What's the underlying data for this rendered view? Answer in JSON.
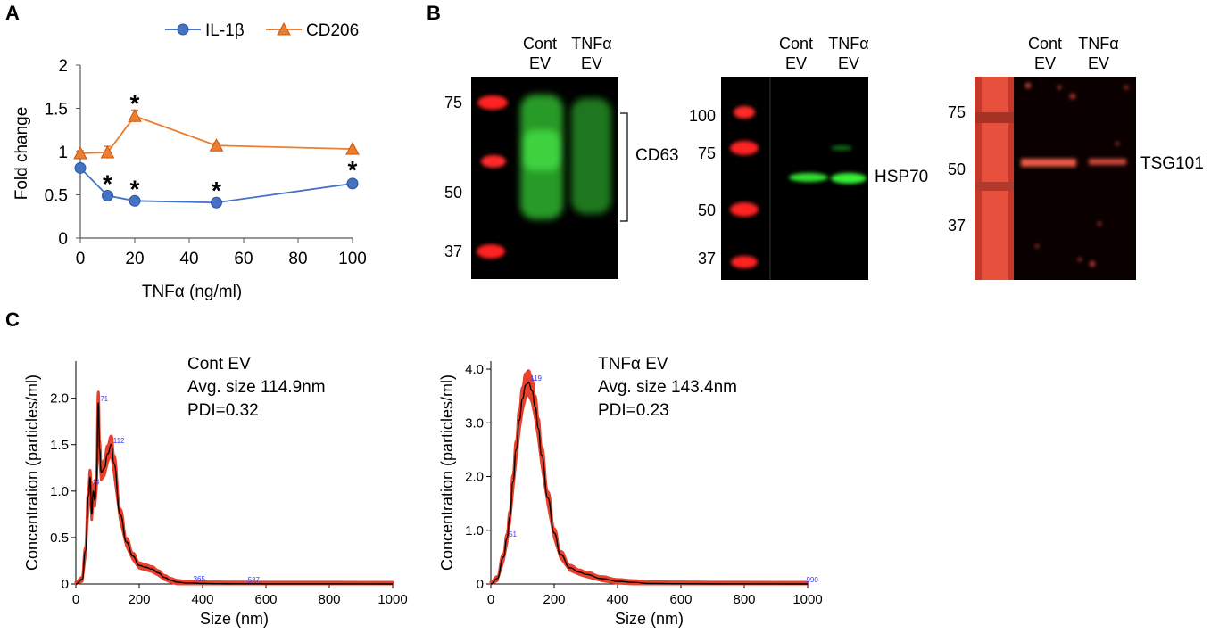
{
  "panels": {
    "a": "A",
    "b": "B",
    "c": "C"
  },
  "panel_a": {
    "chart_data": {
      "type": "line",
      "xlabel": "TNFα (ng/ml)",
      "ylabel": "Fold change",
      "x": [
        0,
        10,
        20,
        50,
        100
      ],
      "xticks": [
        "0",
        "20",
        "40",
        "60",
        "80",
        "100"
      ],
      "yticks": [
        "0",
        "0.5",
        "1",
        "1.5",
        "2"
      ],
      "xlim": [
        0,
        100
      ],
      "ylim": [
        0,
        2
      ],
      "series": [
        {
          "name": "IL-1β",
          "values": [
            0.81,
            0.49,
            0.43,
            0.41,
            0.63
          ],
          "errors": [
            0.02,
            0.02,
            0.02,
            0.02,
            0.02
          ],
          "color": "#4472c4",
          "marker": "circle",
          "significance": [
            "",
            "*",
            "*",
            "*",
            "*"
          ]
        },
        {
          "name": "CD206",
          "values": [
            0.98,
            0.99,
            1.41,
            1.07,
            1.03
          ],
          "errors": [
            0.03,
            0.07,
            0.07,
            0.03,
            0.02
          ],
          "color": "#ed7d31",
          "marker": "triangle",
          "significance": [
            "",
            "",
            "*",
            "",
            ""
          ]
        }
      ]
    }
  },
  "panel_b": {
    "blot1": {
      "lanes": [
        {
          "line1": "Cont",
          "line2": "EV"
        },
        {
          "line1": "TNFα",
          "line2": "EV"
        }
      ],
      "markers": [
        "75",
        "50",
        "37"
      ],
      "protein": "CD63"
    },
    "blot2": {
      "lanes": [
        {
          "line1": "Cont",
          "line2": "EV"
        },
        {
          "line1": "TNFα",
          "line2": "EV"
        }
      ],
      "markers": [
        "100",
        "75",
        "50",
        "37"
      ],
      "protein": "HSP70"
    },
    "blot3": {
      "lanes": [
        {
          "line1": "Cont",
          "line2": "EV"
        },
        {
          "line1": "TNFα",
          "line2": "EV"
        }
      ],
      "markers": [
        "75",
        "50",
        "37"
      ],
      "protein": "TSG101"
    }
  },
  "panel_c": {
    "chart_data": [
      {
        "type": "area",
        "title": "Cont EV",
        "annotations": [
          "Avg. size 114.9nm",
          "PDI=0.32"
        ],
        "xlabel": "Size (nm)",
        "ylabel": "Concentration (particles/ml)",
        "xlim": [
          0,
          1000
        ],
        "ylim": [
          0,
          2.4
        ],
        "xticks": [
          "0",
          "200",
          "400",
          "600",
          "800",
          "1000"
        ],
        "yticks": [
          "0",
          "0.5",
          "1.0",
          "1.5",
          "2.0"
        ],
        "x": [
          0,
          20,
          30,
          40,
          45,
          50,
          55,
          60,
          65,
          71,
          75,
          80,
          90,
          100,
          112,
          120,
          140,
          160,
          180,
          200,
          220,
          240,
          260,
          280,
          300,
          320,
          350,
          365,
          400,
          450,
          500,
          537,
          600,
          700,
          800,
          1000
        ],
        "values": [
          0,
          0.05,
          0.35,
          0.95,
          1.15,
          0.75,
          1.0,
          0.9,
          1.1,
          1.95,
          1.45,
          1.2,
          1.25,
          1.4,
          1.5,
          1.3,
          0.75,
          0.45,
          0.3,
          0.2,
          0.18,
          0.16,
          0.12,
          0.07,
          0.04,
          0.02,
          0.01,
          0.01,
          0.005,
          0.003,
          0.002,
          0.002,
          0.001,
          0.001,
          0.001,
          0
        ],
        "peak_labels": [
          {
            "x": 44,
            "y": 1.05,
            "label": "44"
          },
          {
            "x": 71,
            "y": 1.95,
            "label": "71"
          },
          {
            "x": 112,
            "y": 1.5,
            "label": "112"
          },
          {
            "x": 365,
            "y": 0.01,
            "label": "365"
          },
          {
            "x": 537,
            "y": 0.0,
            "label": "537"
          }
        ]
      },
      {
        "type": "area",
        "title": "TNFα EV",
        "annotations": [
          "Avg. size 143.4nm",
          "PDI=0.23"
        ],
        "xlabel": "Size (nm)",
        "ylabel": "Concentration (particles/ml)",
        "xlim": [
          0,
          1000
        ],
        "ylim": [
          0,
          4.15
        ],
        "xticks": [
          "0",
          "200",
          "400",
          "600",
          "800",
          "1000"
        ],
        "yticks": [
          "0",
          "1.0",
          "2.0",
          "3.0",
          "4.0"
        ],
        "x": [
          0,
          20,
          40,
          51,
          60,
          70,
          80,
          90,
          100,
          110,
          119,
          130,
          140,
          150,
          160,
          180,
          200,
          220,
          250,
          280,
          300,
          350,
          400,
          450,
          500,
          600,
          700,
          800,
          990,
          1000
        ],
        "values": [
          0,
          0.1,
          0.5,
          0.85,
          1.25,
          1.9,
          2.5,
          3.05,
          3.45,
          3.7,
          3.75,
          3.6,
          3.3,
          2.9,
          2.4,
          1.6,
          0.95,
          0.55,
          0.3,
          0.22,
          0.18,
          0.1,
          0.05,
          0.03,
          0.01,
          0.005,
          0.002,
          0.001,
          0.0,
          0
        ],
        "peak_labels": [
          {
            "x": 51,
            "y": 0.85,
            "label": "51"
          },
          {
            "x": 119,
            "y": 3.75,
            "label": "119"
          },
          {
            "x": 990,
            "y": 0.0,
            "label": "990"
          }
        ]
      }
    ]
  }
}
